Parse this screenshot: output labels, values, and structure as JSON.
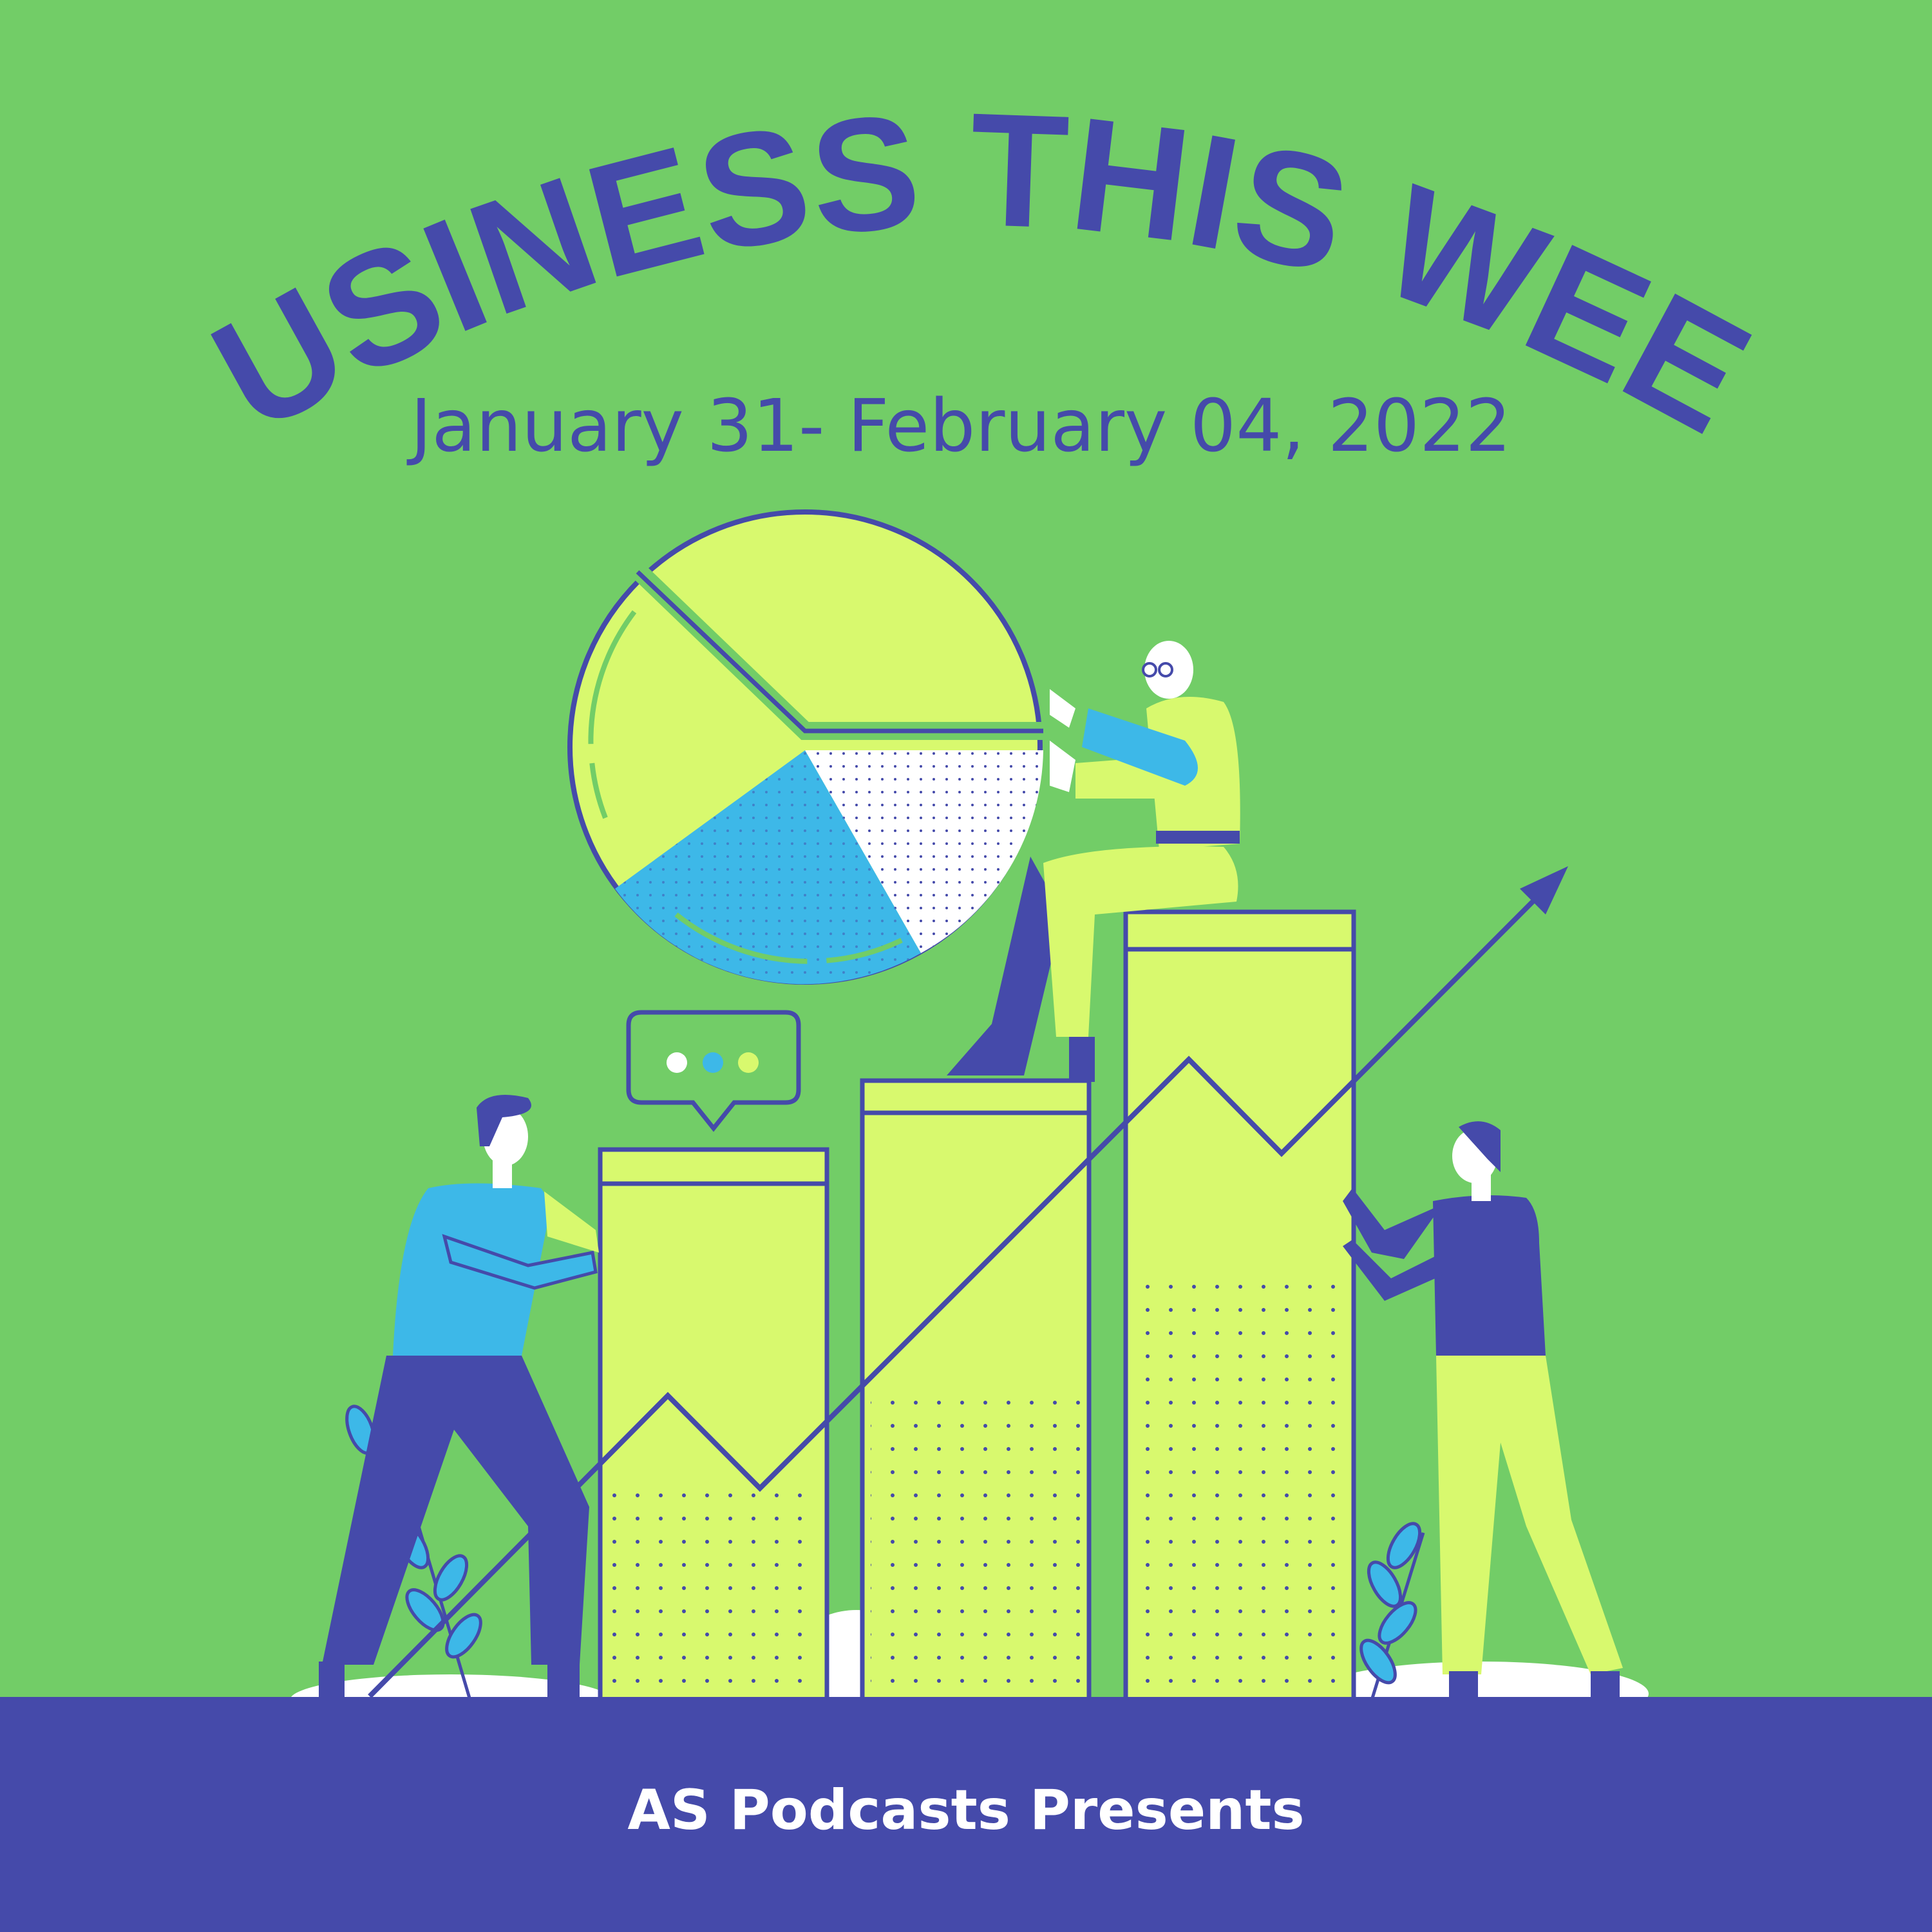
{
  "poster": {
    "title": "BUSINESS THIS WEEK",
    "date_range": "January 31- February 04, 2022",
    "footer": "AS Podcasts Presents"
  },
  "colors": {
    "background": "#72CD67",
    "primary": "#454AAA",
    "lime": "#D8F96E",
    "cyan": "#3DB8E8",
    "white": "#FFFFFF"
  },
  "illustration": {
    "elements": [
      "pie-chart",
      "bar-chart",
      "trend-arrow",
      "speech-bubble",
      "three-people",
      "plants"
    ]
  }
}
